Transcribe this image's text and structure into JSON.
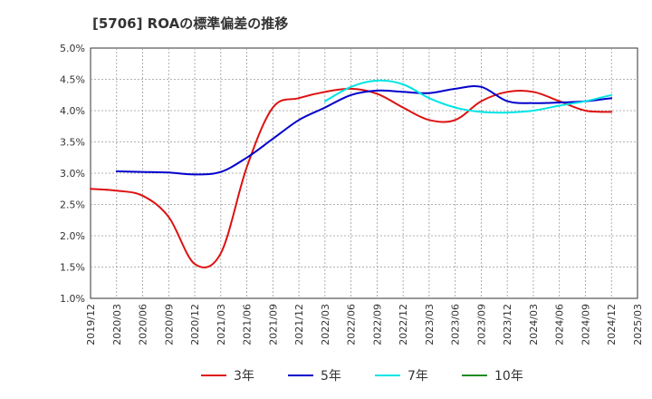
{
  "chart_data": {
    "type": "line",
    "title": "[5706]  ROAの標準偏差の推移",
    "xlabel": "",
    "ylabel": "",
    "x": [
      "2019/12",
      "2020/03",
      "2020/06",
      "2020/09",
      "2020/12",
      "2021/03",
      "2021/06",
      "2021/09",
      "2021/12",
      "2022/03",
      "2022/06",
      "2022/09",
      "2022/12",
      "2023/03",
      "2023/06",
      "2023/09",
      "2023/12",
      "2024/03",
      "2024/06",
      "2024/09",
      "2024/12",
      "2025/03"
    ],
    "x_ticks": [
      "2019/12",
      "2020/03",
      "2020/06",
      "2020/09",
      "2020/12",
      "2021/03",
      "2021/06",
      "2021/09",
      "2021/12",
      "2022/03",
      "2022/06",
      "2022/09",
      "2022/12",
      "2023/03",
      "2023/06",
      "2023/09",
      "2023/12",
      "2024/03",
      "2024/06",
      "2024/09",
      "2024/12",
      "2025/03"
    ],
    "ylim": [
      1.0,
      5.0
    ],
    "y_ticks": [
      "1.0%",
      "1.5%",
      "2.0%",
      "2.5%",
      "3.0%",
      "3.5%",
      "4.0%",
      "4.5%",
      "5.0%"
    ],
    "grid": true,
    "legend_position": "bottom",
    "series": [
      {
        "name": "3年",
        "color": "#dd1111",
        "values": [
          2.75,
          2.72,
          2.64,
          2.3,
          1.55,
          1.72,
          3.1,
          4.05,
          4.2,
          4.3,
          4.35,
          4.27,
          4.05,
          3.85,
          3.85,
          4.15,
          4.3,
          4.3,
          4.15,
          4.0,
          3.98,
          null
        ]
      },
      {
        "name": "5年",
        "color": "#0000cc",
        "values": [
          null,
          3.03,
          3.02,
          3.01,
          2.98,
          3.02,
          3.25,
          3.55,
          3.85,
          4.05,
          4.25,
          4.32,
          4.3,
          4.28,
          4.35,
          4.38,
          4.15,
          4.12,
          4.13,
          4.15,
          4.2,
          null
        ]
      },
      {
        "name": "7年",
        "color": "#00e5e5",
        "values": [
          null,
          null,
          null,
          null,
          null,
          null,
          null,
          null,
          null,
          4.15,
          4.38,
          4.48,
          4.42,
          4.2,
          4.05,
          3.98,
          3.97,
          4.0,
          4.08,
          4.15,
          4.25,
          null
        ]
      },
      {
        "name": "10年",
        "color": "#228B22",
        "values": [
          null,
          null,
          null,
          null,
          null,
          null,
          null,
          null,
          null,
          null,
          null,
          null,
          null,
          null,
          null,
          null,
          null,
          null,
          null,
          null,
          null,
          null
        ]
      }
    ]
  }
}
